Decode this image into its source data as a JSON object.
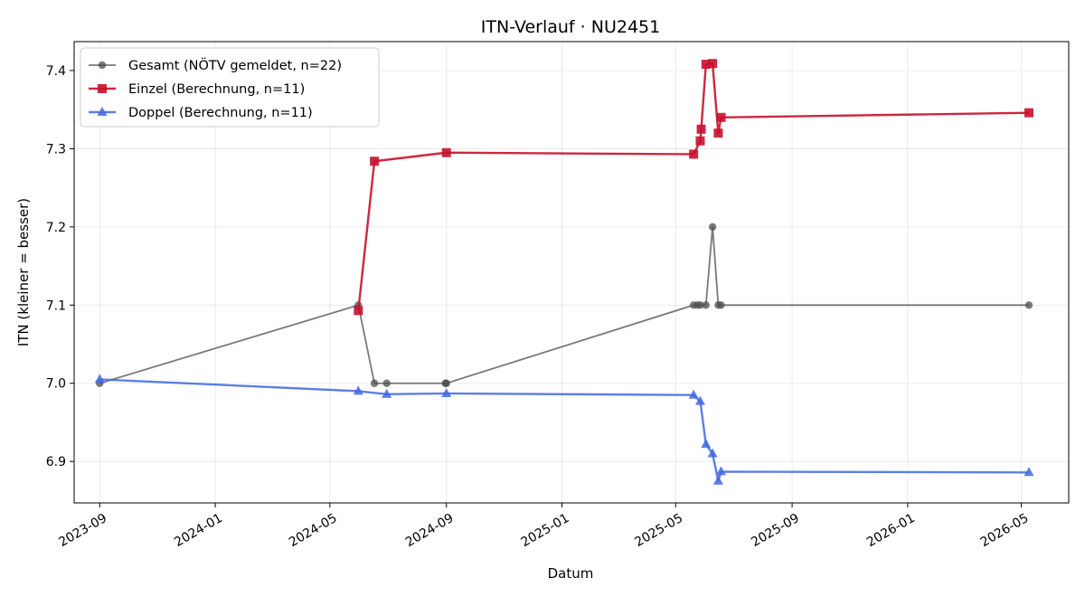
{
  "chart_data": {
    "type": "line",
    "title": "ITN-Verlauf · NU2451",
    "xlabel": "Datum",
    "ylabel": "ITN  (kleiner = besser)",
    "x_axis_type": "date",
    "xlim": [
      "2023-08-05",
      "2026-06-20"
    ],
    "ylim": [
      6.847,
      7.437
    ],
    "x_ticks": [
      "2023-09-01",
      "2024-01-01",
      "2024-05-01",
      "2024-09-01",
      "2025-01-01",
      "2025-05-01",
      "2025-09-01",
      "2026-01-01",
      "2026-05-01"
    ],
    "x_tick_labels": [
      "2023-09",
      "2024-01",
      "2024-05",
      "2024-09",
      "2025-01",
      "2025-05",
      "2025-09",
      "2026-01",
      "2026-05"
    ],
    "y_ticks": [
      6.9,
      7.0,
      7.1,
      7.2,
      7.3,
      7.4
    ],
    "y_tick_labels": [
      "6.9",
      "7.0",
      "7.1",
      "7.2",
      "7.3",
      "7.4"
    ],
    "grid": true,
    "legend_position": "top-left",
    "series": [
      {
        "name": "Gesamt (NÖTV gemeldet, n=22)",
        "color": "#4d4d4d",
        "marker": "circle",
        "points": [
          [
            "2023-09-01",
            7.0
          ],
          [
            "2024-05-31",
            7.1
          ],
          [
            "2024-06-17",
            7.0
          ],
          [
            "2024-06-30",
            7.0
          ],
          [
            "2024-08-31",
            7.0
          ],
          [
            "2024-09-01",
            7.0
          ],
          [
            "2025-05-20",
            7.1
          ],
          [
            "2025-05-24",
            7.1
          ],
          [
            "2025-05-27",
            7.1
          ],
          [
            "2025-06-02",
            7.1
          ],
          [
            "2025-06-09",
            7.2
          ],
          [
            "2025-06-15",
            7.1
          ],
          [
            "2025-06-18",
            7.1
          ],
          [
            "2026-05-09",
            7.1
          ]
        ]
      },
      {
        "name": "Einzel (Berechnung, n=11)",
        "color": "#c8102e",
        "marker": "square",
        "points": [
          [
            "2024-05-31",
            7.093
          ],
          [
            "2024-06-17",
            7.284
          ],
          [
            "2024-09-01",
            7.295
          ],
          [
            "2025-05-20",
            7.293
          ],
          [
            "2025-05-27",
            7.31
          ],
          [
            "2025-05-28",
            7.325
          ],
          [
            "2025-06-02",
            7.408
          ],
          [
            "2025-06-09",
            7.409
          ],
          [
            "2025-06-15",
            7.32
          ],
          [
            "2025-06-18",
            7.34
          ],
          [
            "2026-05-09",
            7.346
          ]
        ]
      },
      {
        "name": "Doppel (Berechnung, n=11)",
        "color": "#4169e1",
        "marker": "triangle",
        "points": [
          [
            "2023-09-01",
            7.005
          ],
          [
            "2024-05-31",
            6.99
          ],
          [
            "2024-06-30",
            6.986
          ],
          [
            "2024-09-01",
            6.987
          ],
          [
            "2025-05-20",
            6.985
          ],
          [
            "2025-05-27",
            6.977
          ],
          [
            "2025-06-02",
            6.922
          ],
          [
            "2025-06-09",
            6.91
          ],
          [
            "2025-06-15",
            6.875
          ],
          [
            "2025-06-18",
            6.887
          ],
          [
            "2026-05-09",
            6.886
          ]
        ]
      }
    ]
  }
}
